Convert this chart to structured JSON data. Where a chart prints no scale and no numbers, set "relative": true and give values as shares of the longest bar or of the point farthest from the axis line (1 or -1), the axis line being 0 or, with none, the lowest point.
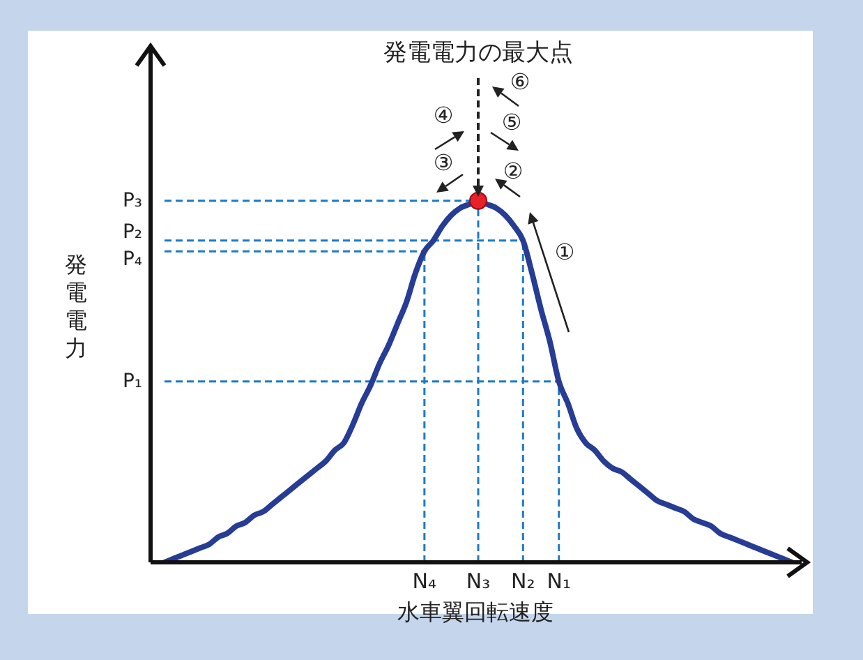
{
  "chart_data": {
    "type": "line",
    "relative": true,
    "xlabel": "水車翼回転速度",
    "ylabel": "発電電力",
    "categories": [
      null,
      null,
      null,
      null,
      null,
      null,
      null,
      null,
      null,
      null,
      null,
      null,
      null,
      null,
      null,
      null,
      null,
      null,
      null,
      null,
      null,
      null,
      null,
      null,
      null,
      null,
      null,
      null,
      null,
      "N₄",
      null,
      null,
      null,
      null,
      null,
      "N₃",
      null,
      null,
      null,
      null,
      "N₂",
      null,
      null,
      null,
      "N₁",
      null,
      null,
      null,
      null,
      null,
      null,
      null,
      null,
      null,
      null,
      null,
      null,
      null,
      null,
      null,
      null,
      null,
      null,
      null,
      null,
      null,
      null,
      null,
      null,
      null,
      null
    ],
    "series": [
      {
        "type": "line",
        "color": "#263c95",
        "values": [
          0,
          0.01,
          0.02,
          0.03,
          0.04,
          0.05,
          0.07,
          0.08,
          0.1,
          0.11,
          0.13,
          0.14,
          0.16,
          0.18,
          0.2,
          0.22,
          0.24,
          0.26,
          0.28,
          0.31,
          0.33,
          0.38,
          0.44,
          0.49,
          0.55,
          0.6,
          0.66,
          0.72,
          0.8,
          0.86,
          0.89,
          0.93,
          0.96,
          0.98,
          0.99,
          1,
          0.99,
          0.98,
          0.96,
          0.93,
          0.89,
          0.8,
          0.7,
          0.61,
          0.5,
          0.44,
          0.37,
          0.33,
          0.31,
          0.28,
          0.26,
          0.25,
          0.23,
          0.21,
          0.19,
          0.17,
          0.16,
          0.15,
          0.14,
          0.12,
          0.11,
          0.1,
          0.08,
          0.07,
          0.06,
          0.05,
          0.04,
          0.03,
          0.02,
          0.01,
          0
        ]
      },
      {
        "type": "scatter",
        "color": "#e8202a",
        "values": [
          null,
          null,
          null,
          null,
          null,
          null,
          null,
          null,
          null,
          null,
          null,
          null,
          null,
          null,
          null,
          null,
          null,
          null,
          null,
          null,
          null,
          null,
          null,
          null,
          null,
          null,
          null,
          null,
          null,
          null,
          null,
          null,
          null,
          null,
          null,
          1,
          null,
          null,
          null,
          null,
          null,
          null,
          null,
          null,
          null,
          null,
          null,
          null,
          null,
          null,
          null,
          null,
          null,
          null,
          null,
          null,
          null,
          null,
          null,
          null,
          null,
          null,
          null,
          null,
          null,
          null,
          null,
          null,
          null,
          null,
          null
        ]
      }
    ],
    "ref_lines": [
      {
        "axis": "y",
        "value": 1,
        "label": "P₃",
        "color": "#1a7ac8",
        "line_style": "dashed"
      },
      {
        "axis": "y",
        "value": 0.89,
        "label": "P₂",
        "color": "#1a7ac8",
        "line_style": "dashed"
      },
      {
        "axis": "y",
        "value": 0.86,
        "label": "P₄",
        "color": "#1a7ac8",
        "line_style": "dashed"
      },
      {
        "axis": "y",
        "value": 0.5,
        "label": "P₁",
        "color": "#1a7ac8",
        "line_style": "dashed"
      },
      {
        "axis": "x",
        "value": "N₄",
        "color": "#1a7ac8",
        "line_style": "dashed"
      },
      {
        "axis": "x",
        "value": "N₃",
        "color": "#1a7ac8",
        "line_style": "dashed"
      },
      {
        "axis": "x",
        "value": "N₂",
        "color": "#1a7ac8",
        "line_style": "dashed"
      },
      {
        "axis": "x",
        "value": "N₁",
        "color": "#1a7ac8",
        "line_style": "dashed"
      }
    ],
    "annotations": [
      "発電電力の最大点",
      "①",
      "②",
      "③",
      "④",
      "⑤",
      "⑥"
    ]
  }
}
